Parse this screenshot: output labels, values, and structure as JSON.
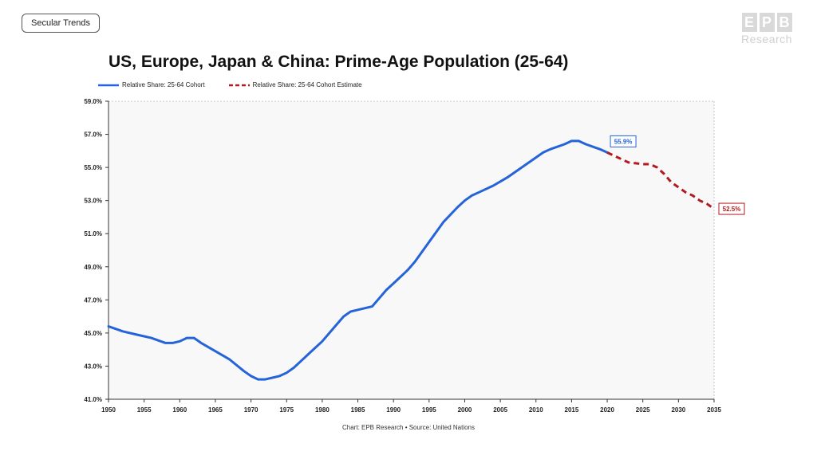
{
  "tag_label": "Secular Trends",
  "logo": {
    "letters": [
      "E",
      "P",
      "B"
    ],
    "sub": "Research"
  },
  "source_text": "Chart: EPB Research  •  Source: United Nations",
  "colors": {
    "actual": "#2563d9",
    "estimate": "#b3191e",
    "plot_bg": "#f8f8f8"
  },
  "chart_data": {
    "type": "line",
    "title": "US, Europe, Japan & China: Prime-Age Population (25-64)",
    "xlabel": "",
    "ylabel": "",
    "xlim": [
      1950,
      2035
    ],
    "ylim": [
      41.0,
      59.0
    ],
    "x_ticks": [
      1950,
      1955,
      1960,
      1965,
      1970,
      1975,
      1980,
      1985,
      1990,
      1995,
      2000,
      2005,
      2010,
      2015,
      2020,
      2025,
      2030,
      2035
    ],
    "y_ticks": [
      41.0,
      43.0,
      45.0,
      47.0,
      49.0,
      51.0,
      53.0,
      55.0,
      57.0,
      59.0
    ],
    "y_tick_format": "%",
    "grid": false,
    "legend_position": "top-left",
    "series": [
      {
        "name": "Relative Share: 25-64 Cohort",
        "style": "solid",
        "x": [
          1950,
          1952,
          1954,
          1956,
          1958,
          1959,
          1960,
          1961,
          1962,
          1963,
          1965,
          1967,
          1969,
          1970,
          1971,
          1972,
          1973,
          1974,
          1975,
          1976,
          1978,
          1980,
          1982,
          1983,
          1984,
          1985,
          1986,
          1987,
          1988,
          1989,
          1990,
          1992,
          1993,
          1995,
          1997,
          1999,
          2000,
          2001,
          2002,
          2004,
          2006,
          2008,
          2010,
          2011,
          2012,
          2014,
          2015,
          2016,
          2017,
          2019,
          2020
        ],
        "y": [
          45.4,
          45.1,
          44.9,
          44.7,
          44.4,
          44.4,
          44.5,
          44.7,
          44.7,
          44.4,
          43.9,
          43.4,
          42.7,
          42.4,
          42.2,
          42.2,
          42.3,
          42.4,
          42.6,
          42.9,
          43.7,
          44.5,
          45.5,
          46.0,
          46.3,
          46.4,
          46.5,
          46.6,
          47.1,
          47.6,
          48.0,
          48.8,
          49.3,
          50.5,
          51.7,
          52.6,
          53.0,
          53.3,
          53.5,
          53.9,
          54.4,
          55.0,
          55.6,
          55.9,
          56.1,
          56.4,
          56.6,
          56.6,
          56.4,
          56.1,
          55.9
        ]
      },
      {
        "name": "Relative Share: 25-64 Cohort Estimate",
        "style": "dashed",
        "x": [
          2020,
          2021,
          2022,
          2023,
          2024,
          2025,
          2026,
          2027,
          2028,
          2029,
          2030,
          2031,
          2032,
          2033,
          2034,
          2035
        ],
        "y": [
          55.9,
          55.7,
          55.5,
          55.3,
          55.25,
          55.2,
          55.2,
          55.0,
          54.6,
          54.1,
          53.8,
          53.5,
          53.3,
          53.0,
          52.8,
          52.5
        ]
      }
    ],
    "annotations": [
      {
        "x": 2020,
        "y": 55.9,
        "text": "55.9%",
        "series": 0,
        "placement": "above-right"
      },
      {
        "x": 2035,
        "y": 52.5,
        "text": "52.5%",
        "series": 1,
        "placement": "right"
      }
    ]
  }
}
